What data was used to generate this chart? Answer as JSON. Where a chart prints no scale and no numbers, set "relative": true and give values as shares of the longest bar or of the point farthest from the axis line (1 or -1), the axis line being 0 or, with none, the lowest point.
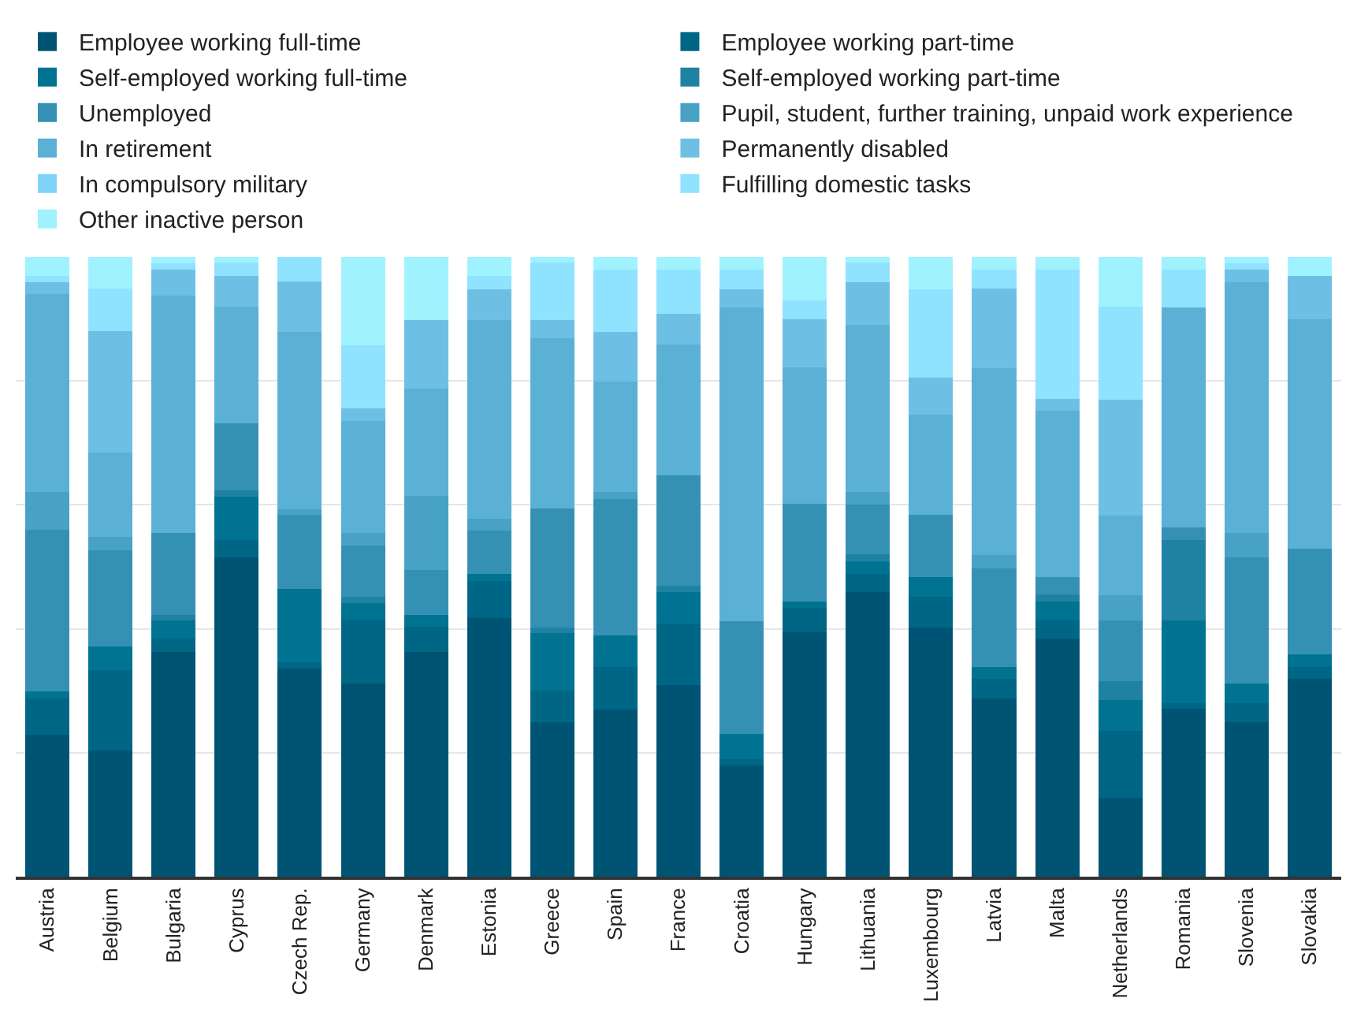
{
  "chart_data": {
    "type": "bar",
    "stacked": true,
    "relative": true,
    "grid": "y",
    "legend": "top",
    "categories": [
      "Austria",
      "Belgium",
      "Bulgaria",
      "Cyprus",
      "Czech Rep.",
      "Germany",
      "Denmark",
      "Estonia",
      "Greece",
      "Spain",
      "France",
      "Croatia",
      "Hungary",
      "Lithuania",
      "Luxembourg",
      "Latvia",
      "Malta",
      "Netherlands",
      "Romania",
      "Slovenia",
      "Slovakia"
    ],
    "series": [
      {
        "name": "Employee working full-time",
        "color": "#005473",
        "values": [
          0.229,
          0.203,
          0.363,
          0.515,
          0.336,
          0.312,
          0.363,
          0.417,
          0.25,
          0.27,
          0.309,
          0.18,
          0.395,
          0.459,
          0.402,
          0.288,
          0.384,
          0.127,
          0.271,
          0.25,
          0.319
        ]
      },
      {
        "name": "Employee working part-time",
        "color": "#006685",
        "values": [
          0.058,
          0.13,
          0.021,
          0.028,
          0.01,
          0.101,
          0.04,
          0.06,
          0.05,
          0.069,
          0.1,
          0.01,
          0.039,
          0.03,
          0.05,
          0.031,
          0.03,
          0.109,
          0.009,
          0.03,
          0.02
        ]
      },
      {
        "name": "Self-employed working full-time",
        "color": "#007393",
        "values": [
          0.012,
          0.038,
          0.029,
          0.07,
          0.118,
          0.029,
          0.02,
          0.011,
          0.093,
          0.05,
          0.05,
          0.04,
          0.01,
          0.02,
          0.032,
          0.02,
          0.03,
          0.049,
          0.133,
          0.032,
          0.02
        ]
      },
      {
        "name": "Self-employed working part-time",
        "color": "#1f82a3",
        "values": [
          0,
          0,
          0.01,
          0.01,
          0,
          0.01,
          0,
          0,
          0.009,
          0,
          0.01,
          0,
          0,
          0.011,
          0,
          0,
          0.011,
          0.031,
          0.13,
          0,
          0
        ]
      },
      {
        "name": "Unemployed",
        "color": "#3591b4",
        "values": [
          0.261,
          0.156,
          0.132,
          0.108,
          0.12,
          0.082,
          0.072,
          0.07,
          0.192,
          0.22,
          0.179,
          0.182,
          0.158,
          0.08,
          0.1,
          0.159,
          0.029,
          0.098,
          0.021,
          0.203,
          0.17
        ]
      },
      {
        "name": "Pupil, student, further training, unpaid work experience",
        "color": "#48a2c6",
        "values": [
          0.061,
          0.021,
          0,
          0,
          0.009,
          0.021,
          0.12,
          0.02,
          0,
          0.012,
          0,
          0,
          0,
          0.021,
          0,
          0.021,
          0,
          0.04,
          0,
          0.04,
          0
        ]
      },
      {
        "name": "In retirement",
        "color": "#5bb0d5",
        "values": [
          0.319,
          0.136,
          0.383,
          0.189,
          0.286,
          0.181,
          0.172,
          0.32,
          0.275,
          0.178,
          0.211,
          0.506,
          0.22,
          0.269,
          0.162,
          0.301,
          0.268,
          0.129,
          0.354,
          0.404,
          0.37
        ]
      },
      {
        "name": "Permanently disabled",
        "color": "#6dc0e4",
        "values": [
          0.019,
          0.197,
          0.042,
          0.05,
          0.081,
          0.02,
          0.111,
          0.05,
          0.029,
          0.08,
          0.05,
          0.03,
          0.077,
          0.069,
          0.059,
          0.129,
          0.019,
          0.187,
          0,
          0.021,
          0.071
        ]
      },
      {
        "name": "In compulsory military",
        "color": "#7fd3f8",
        "values": [
          0,
          0,
          0,
          0,
          0,
          0,
          0,
          0,
          0,
          0,
          0,
          0,
          0,
          0,
          0,
          0,
          0,
          0,
          0,
          0,
          0
        ]
      },
      {
        "name": "Fulfilling domestic tasks",
        "color": "#8fe3fe",
        "values": [
          0.01,
          0.068,
          0.01,
          0.021,
          0.04,
          0.102,
          0,
          0.022,
          0.093,
          0.101,
          0.071,
          0.032,
          0.031,
          0.032,
          0.143,
          0.031,
          0.209,
          0.15,
          0.062,
          0.01,
          0
        ]
      },
      {
        "name": "Other inactive person",
        "color": "#a1f2ff",
        "values": [
          0.031,
          0.051,
          0.01,
          0.009,
          0,
          0.142,
          0.102,
          0.03,
          0.009,
          0.02,
          0.02,
          0.02,
          0.07,
          0.009,
          0.052,
          0.02,
          0.02,
          0.08,
          0.02,
          0.01,
          0.03
        ]
      }
    ]
  }
}
